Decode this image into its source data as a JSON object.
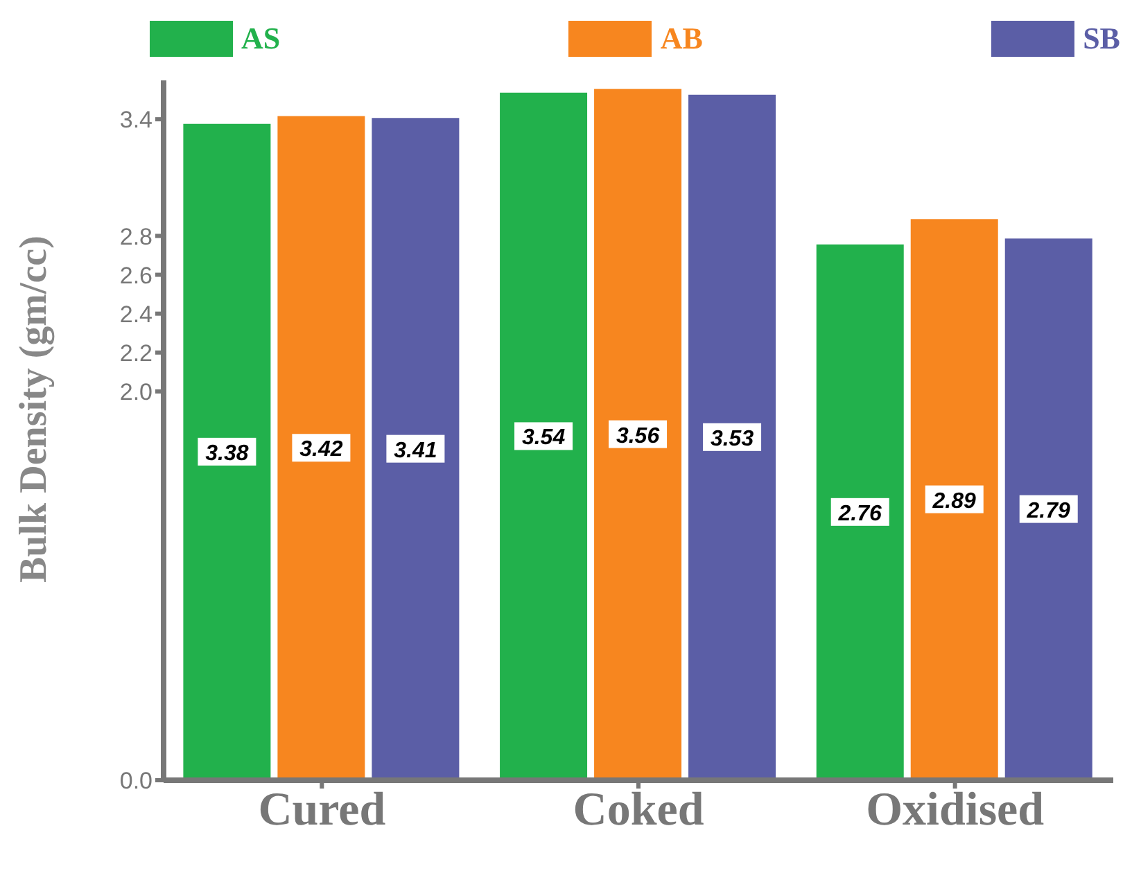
{
  "chart_data": {
    "type": "bar",
    "ylabel": "Bulk Density (gm/cc)",
    "categories": [
      "Cured",
      "Coked",
      "Oxidised"
    ],
    "series": [
      {
        "name": "AS",
        "color": "#22b14c",
        "values": [
          3.38,
          3.54,
          2.76
        ]
      },
      {
        "name": "AB",
        "color": "#f7861f",
        "values": [
          3.42,
          3.56,
          2.89
        ]
      },
      {
        "name": "SB",
        "color": "#5b5ea6",
        "values": [
          3.41,
          3.53,
          2.79
        ]
      }
    ],
    "ylim": [
      0,
      3.6
    ],
    "yticks": [
      {
        "value": 0,
        "label": "0.0"
      },
      {
        "value": 2,
        "label": "2.0"
      },
      2.2,
      2.4,
      2.6,
      2.8,
      3.4
    ],
    "data_labels": true,
    "legend": "top",
    "grid": false
  }
}
